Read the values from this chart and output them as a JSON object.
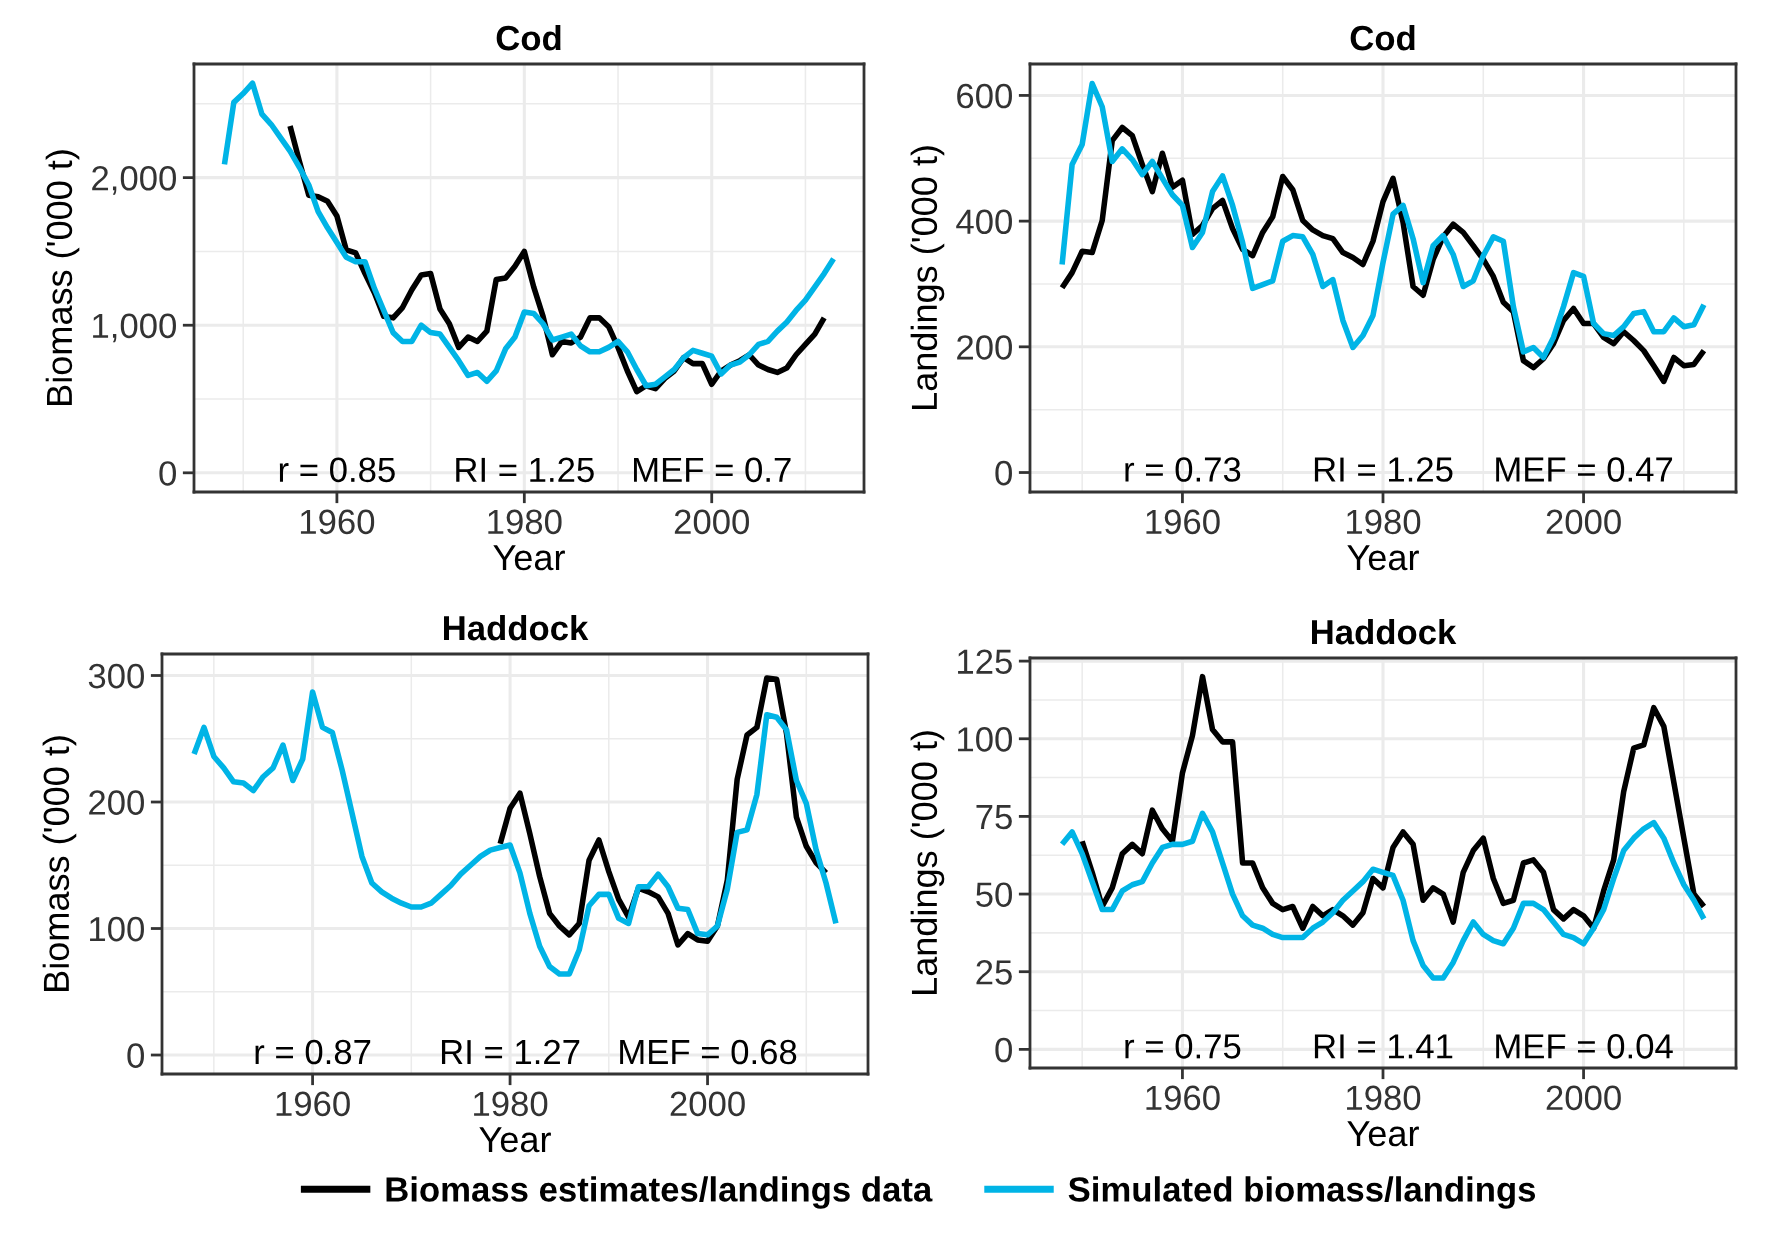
{
  "chart_data": [
    {
      "type": "line",
      "title": "Cod",
      "xlabel": "Year",
      "ylabel": "Biomass ('000 t)",
      "xlim": [
        1944.75,
        2016.25
      ],
      "ylim": [
        -130,
        2770
      ],
      "xticks": [
        1960,
        1980,
        2000
      ],
      "yticks": [
        0,
        {
          "value": 1000,
          "label": "1,000"
        },
        {
          "value": 2000,
          "label": "2,000"
        }
      ],
      "grid": true,
      "legend": "bottom",
      "annotations": [
        "r = 0.85",
        "RI = 1.25",
        "MEF = 0.7"
      ],
      "series": [
        {
          "name": "Biomass estimates/landings data",
          "color": "#000000",
          "x": [
            1955,
            1956,
            1957,
            1958,
            1959,
            1960,
            1961,
            1962,
            1963,
            1964,
            1965,
            1966,
            1967,
            1968,
            1969,
            1970,
            1971,
            1972,
            1973,
            1974,
            1975,
            1976,
            1977,
            1978,
            1979,
            1980,
            1981,
            1982,
            1983,
            1984,
            1985,
            1986,
            1987,
            1988,
            1989,
            1990,
            1991,
            1992,
            1993,
            1994,
            1995,
            1996,
            1997,
            1998,
            1999,
            2000,
            2001,
            2002,
            2003,
            2004,
            2005,
            2006,
            2007,
            2008,
            2009,
            2010,
            2011,
            2012
          ],
          "values": [
            2350,
            2110,
            1880,
            1870,
            1840,
            1740,
            1510,
            1490,
            1350,
            1220,
            1060,
            1050,
            1120,
            1240,
            1340,
            1350,
            1110,
            1010,
            850,
            920,
            890,
            960,
            1310,
            1320,
            1400,
            1500,
            1260,
            1060,
            800,
            890,
            880,
            920,
            1050,
            1050,
            990,
            850,
            690,
            550,
            590,
            570,
            640,
            690,
            780,
            740,
            740,
            600,
            690,
            730,
            760,
            800,
            730,
            700,
            680,
            710,
            800,
            870,
            940,
            1050
          ]
        },
        {
          "name": "Simulated biomass/landings",
          "color": "#00b4e6",
          "x": [
            1948,
            1949,
            1950,
            1951,
            1952,
            1953,
            1954,
            1955,
            1956,
            1957,
            1958,
            1959,
            1960,
            1961,
            1962,
            1963,
            1964,
            1965,
            1966,
            1967,
            1968,
            1969,
            1970,
            1971,
            1972,
            1973,
            1974,
            1975,
            1976,
            1977,
            1978,
            1979,
            1980,
            1981,
            1982,
            1983,
            1984,
            1985,
            1986,
            1987,
            1988,
            1989,
            1990,
            1991,
            1992,
            1993,
            1994,
            1995,
            1996,
            1997,
            1998,
            1999,
            2000,
            2001,
            2002,
            2003,
            2004,
            2005,
            2006,
            2007,
            2008,
            2009,
            2010,
            2011,
            2012,
            2013
          ],
          "values": [
            2090,
            2510,
            2570,
            2640,
            2430,
            2360,
            2270,
            2180,
            2070,
            1950,
            1770,
            1660,
            1560,
            1460,
            1430,
            1430,
            1250,
            1100,
            950,
            890,
            890,
            1000,
            950,
            940,
            850,
            760,
            660,
            680,
            620,
            690,
            840,
            920,
            1090,
            1080,
            1010,
            900,
            920,
            940,
            860,
            820,
            820,
            850,
            890,
            820,
            700,
            590,
            600,
            650,
            700,
            780,
            830,
            810,
            790,
            670,
            730,
            750,
            800,
            870,
            890,
            960,
            1020,
            1100,
            1170,
            1260,
            1350,
            1450
          ]
        }
      ]
    },
    {
      "type": "line",
      "title": "Cod",
      "xlabel": "Year",
      "ylabel": "Landings ('000 t)",
      "xlim": [
        1944.8,
        2015.2
      ],
      "ylim": [
        -31,
        650
      ],
      "xticks": [
        1960,
        1980,
        2000
      ],
      "yticks": [
        0,
        200,
        400,
        600
      ],
      "grid": true,
      "annotations": [
        "r = 0.73",
        "RI = 1.25",
        "MEF = 0.47"
      ],
      "series": [
        {
          "name": "Biomass estimates/landings data",
          "color": "#000000",
          "x": [
            1948,
            1949,
            1950,
            1951,
            1952,
            1953,
            1954,
            1955,
            1956,
            1957,
            1958,
            1959,
            1960,
            1961,
            1962,
            1963,
            1964,
            1965,
            1966,
            1967,
            1968,
            1969,
            1970,
            1971,
            1972,
            1973,
            1974,
            1975,
            1976,
            1977,
            1978,
            1979,
            1980,
            1981,
            1982,
            1983,
            1984,
            1985,
            1986,
            1987,
            1988,
            1989,
            1990,
            1991,
            1992,
            1993,
            1994,
            1995,
            1996,
            1997,
            1998,
            1999,
            2000,
            2001,
            2002,
            2003,
            2004,
            2005,
            2006,
            2007,
            2008,
            2009,
            2010,
            2011,
            2012
          ],
          "values": [
            294,
            318,
            352,
            350,
            401,
            528,
            549,
            536,
            490,
            447,
            508,
            454,
            465,
            379,
            393,
            420,
            433,
            388,
            355,
            345,
            382,
            407,
            471,
            450,
            401,
            386,
            377,
            372,
            350,
            342,
            331,
            368,
            431,
            468,
            398,
            296,
            282,
            339,
            375,
            395,
            382,
            361,
            339,
            312,
            271,
            256,
            178,
            167,
            181,
            205,
            242,
            261,
            237,
            237,
            215,
            205,
            224,
            210,
            194,
            170,
            145,
            183,
            170,
            172,
            194
          ]
        },
        {
          "name": "Simulated biomass/landings",
          "color": "#00b4e6",
          "x": [
            1948,
            1949,
            1950,
            1951,
            1952,
            1953,
            1954,
            1955,
            1956,
            1957,
            1958,
            1959,
            1960,
            1961,
            1962,
            1963,
            1964,
            1965,
            1966,
            1967,
            1968,
            1969,
            1970,
            1971,
            1972,
            1973,
            1974,
            1975,
            1976,
            1977,
            1978,
            1979,
            1980,
            1981,
            1982,
            1983,
            1984,
            1985,
            1986,
            1987,
            1988,
            1989,
            1990,
            1991,
            1992,
            1993,
            1994,
            1995,
            1996,
            1997,
            1998,
            1999,
            2000,
            2001,
            2002,
            2003,
            2004,
            2005,
            2006,
            2007,
            2008,
            2009,
            2010,
            2011,
            2012
          ],
          "values": [
            331,
            490,
            522,
            619,
            582,
            495,
            515,
            498,
            474,
            495,
            468,
            442,
            425,
            358,
            382,
            447,
            472,
            425,
            366,
            293,
            299,
            305,
            368,
            377,
            375,
            347,
            296,
            307,
            242,
            199,
            218,
            250,
            334,
            411,
            425,
            372,
            302,
            361,
            377,
            347,
            296,
            305,
            345,
            375,
            368,
            264,
            192,
            199,
            183,
            215,
            264,
            318,
            312,
            237,
            221,
            218,
            232,
            253,
            256,
            224,
            224,
            246,
            232,
            235,
            267
          ]
        }
      ]
    },
    {
      "type": "line",
      "title": "Haddock",
      "xlabel": "Year",
      "ylabel": "Biomass ('000 t)",
      "xlim": [
        1944.75,
        2016.25
      ],
      "ylim": [
        -15,
        317
      ],
      "xticks": [
        1960,
        1980,
        2000
      ],
      "yticks": [
        0,
        100,
        200,
        300
      ],
      "grid": true,
      "annotations": [
        "r = 0.87",
        "RI = 1.27",
        "MEF = 0.68"
      ],
      "series": [
        {
          "name": "Biomass estimates/landings data",
          "color": "#000000",
          "x": [
            1979,
            1980,
            1981,
            1982,
            1983,
            1984,
            1985,
            1986,
            1987,
            1988,
            1989,
            1990,
            1991,
            1992,
            1993,
            1994,
            1995,
            1996,
            1997,
            1998,
            1999,
            2000,
            2001,
            2002,
            2003,
            2004,
            2005,
            2006,
            2007,
            2008,
            2009,
            2010,
            2011,
            2012
          ],
          "values": [
            167,
            195,
            207,
            175,
            141,
            112,
            102,
            95,
            104,
            154,
            170,
            145,
            123,
            109,
            132,
            129,
            125,
            112,
            87,
            96,
            91,
            90,
            102,
            138,
            218,
            253,
            259,
            298,
            297,
            254,
            188,
            165,
            152,
            144
          ]
        },
        {
          "name": "Simulated biomass/landings",
          "color": "#00b4e6",
          "x": [
            1948,
            1949,
            1950,
            1951,
            1952,
            1953,
            1954,
            1955,
            1956,
            1957,
            1958,
            1959,
            1960,
            1961,
            1962,
            1963,
            1964,
            1965,
            1966,
            1967,
            1968,
            1969,
            1970,
            1971,
            1972,
            1973,
            1974,
            1975,
            1976,
            1977,
            1978,
            1979,
            1980,
            1981,
            1982,
            1983,
            1984,
            1985,
            1986,
            1987,
            1988,
            1989,
            1990,
            1991,
            1992,
            1993,
            1994,
            1995,
            1996,
            1997,
            1998,
            1999,
            2000,
            2001,
            2002,
            2003,
            2004,
            2005,
            2006,
            2007,
            2008,
            2009,
            2010,
            2011,
            2012,
            2013
          ],
          "values": [
            238,
            259,
            236,
            227,
            216,
            215,
            209,
            220,
            227,
            245,
            217,
            234,
            287,
            259,
            255,
            225,
            191,
            157,
            136,
            129,
            124,
            120,
            117,
            117,
            120,
            127,
            134,
            143,
            150,
            157,
            162,
            164,
            166,
            144,
            112,
            86,
            70,
            64,
            64,
            83,
            118,
            127,
            127,
            108,
            104,
            133,
            133,
            143,
            133,
            116,
            115,
            96,
            95,
            102,
            131,
            176,
            178,
            206,
            269,
            267,
            257,
            217,
            199,
            162,
            136,
            104
          ]
        }
      ]
    },
    {
      "type": "line",
      "title": "Haddock",
      "xlabel": "Year",
      "ylabel": "Landings ('000 t)",
      "xlim": [
        1944.8,
        2015.2
      ],
      "ylim": [
        -6,
        126
      ],
      "xticks": [
        1960,
        1980,
        2000
      ],
      "yticks": [
        0,
        25,
        50,
        75,
        100,
        125
      ],
      "grid": true,
      "annotations": [
        "r = 0.75",
        "RI = 1.41",
        "MEF = 0.04"
      ],
      "series": [
        {
          "name": "Biomass estimates/landings data",
          "color": "#000000",
          "x": [
            1950,
            1951,
            1952,
            1953,
            1954,
            1955,
            1956,
            1957,
            1958,
            1959,
            1960,
            1961,
            1962,
            1963,
            1964,
            1965,
            1966,
            1967,
            1968,
            1969,
            1970,
            1971,
            1972,
            1973,
            1974,
            1975,
            1976,
            1977,
            1978,
            1979,
            1980,
            1981,
            1982,
            1983,
            1984,
            1985,
            1986,
            1987,
            1988,
            1989,
            1990,
            1991,
            1992,
            1993,
            1994,
            1995,
            1996,
            1997,
            1998,
            1999,
            2000,
            2001,
            2002,
            2003,
            2004,
            2005,
            2006,
            2007,
            2008,
            2009,
            2010,
            2011,
            2012
          ],
          "values": [
            67,
            57,
            46,
            52,
            63,
            66,
            63,
            77,
            71,
            67,
            89,
            101,
            120,
            103,
            99,
            99,
            60,
            60,
            52,
            47,
            45,
            46,
            39,
            46,
            43,
            45,
            43,
            40,
            44,
            55,
            52,
            65,
            70,
            66,
            48,
            52,
            50,
            41,
            57,
            64,
            68,
            55,
            47,
            48,
            60,
            61,
            57,
            45,
            42,
            45,
            43,
            39,
            51,
            61,
            83,
            97,
            98,
            110,
            104,
            86,
            68,
            50,
            46
          ]
        },
        {
          "name": "Simulated biomass/landings",
          "color": "#00b4e6",
          "x": [
            1948,
            1949,
            1950,
            1951,
            1952,
            1953,
            1954,
            1955,
            1956,
            1957,
            1958,
            1959,
            1960,
            1961,
            1962,
            1963,
            1964,
            1965,
            1966,
            1967,
            1968,
            1969,
            1970,
            1971,
            1972,
            1973,
            1974,
            1975,
            1976,
            1977,
            1978,
            1979,
            1980,
            1981,
            1982,
            1983,
            1984,
            1985,
            1986,
            1987,
            1988,
            1989,
            1990,
            1991,
            1992,
            1993,
            1994,
            1995,
            1996,
            1997,
            1998,
            1999,
            2000,
            2001,
            2002,
            2003,
            2004,
            2005,
            2006,
            2007,
            2008,
            2009,
            2010,
            2011,
            2012
          ],
          "values": [
            66,
            70,
            63,
            54,
            45,
            45,
            51,
            53,
            54,
            60,
            65,
            66,
            66,
            67,
            76,
            70,
            60,
            50,
            43,
            40,
            39,
            37,
            36,
            36,
            36,
            39,
            41,
            44,
            48,
            51,
            54,
            58,
            57,
            56,
            48,
            35,
            27,
            23,
            23,
            28,
            35,
            41,
            37,
            35,
            34,
            39,
            47,
            47,
            45,
            41,
            37,
            36,
            34,
            39,
            45,
            55,
            64,
            68,
            71,
            73,
            68,
            60,
            53,
            48,
            42
          ]
        }
      ]
    }
  ]
}
